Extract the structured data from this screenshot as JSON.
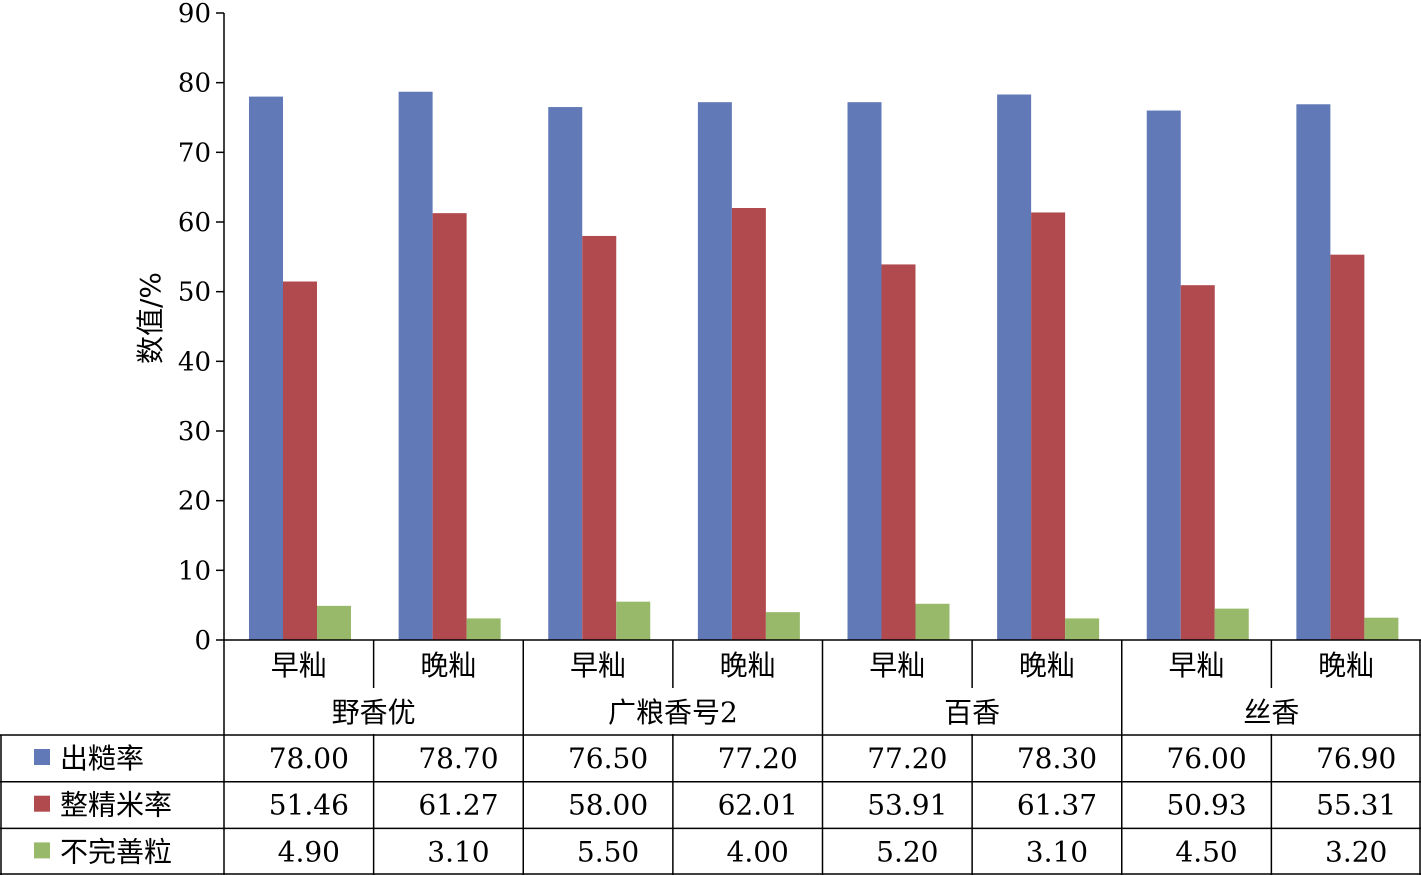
{
  "chart_data": {
    "type": "bar",
    "ylabel": "数值/%",
    "ylim": [
      0,
      90
    ],
    "yticks": [
      0,
      10,
      20,
      30,
      40,
      50,
      60,
      70,
      80,
      90
    ],
    "grid": false,
    "legend": "table-left",
    "groups": [
      {
        "name": "野香优",
        "categories": [
          "早籼",
          "晚籼"
        ]
      },
      {
        "name": "广粮香号2",
        "categories": [
          "早籼",
          "晚籼"
        ]
      },
      {
        "name": "百香",
        "categories": [
          "早籼",
          "晚籼"
        ]
      },
      {
        "name": "丝香",
        "categories": [
          "早籼",
          "晚籼"
        ]
      }
    ],
    "categories": [
      "早籼",
      "晚籼",
      "早籼",
      "晚籼",
      "早籼",
      "晚籼",
      "早籼",
      "晚籼"
    ],
    "series": [
      {
        "name": "出糙率",
        "color": "#6279b8",
        "values": [
          78.0,
          78.7,
          76.5,
          77.2,
          77.2,
          78.3,
          76.0,
          76.9
        ],
        "labels": [
          "78.00",
          "78.70",
          "76.50",
          "77.20",
          "77.20",
          "78.30",
          "76.00",
          "76.90"
        ]
      },
      {
        "name": "整精米率",
        "color": "#b04a4e",
        "values": [
          51.46,
          61.27,
          58.0,
          62.01,
          53.91,
          61.37,
          50.93,
          55.31
        ],
        "labels": [
          "51.46",
          "61.27",
          "58.00",
          "62.01",
          "53.91",
          "61.37",
          "50.93",
          "55.31"
        ]
      },
      {
        "name": "不完善粒",
        "color": "#98b96a",
        "values": [
          4.9,
          3.1,
          5.5,
          4.0,
          5.2,
          3.1,
          4.5,
          3.2
        ],
        "labels": [
          "4.90",
          "3.10",
          "5.50",
          "4.00",
          "5.20",
          "3.10",
          "4.50",
          "3.20"
        ]
      }
    ]
  }
}
